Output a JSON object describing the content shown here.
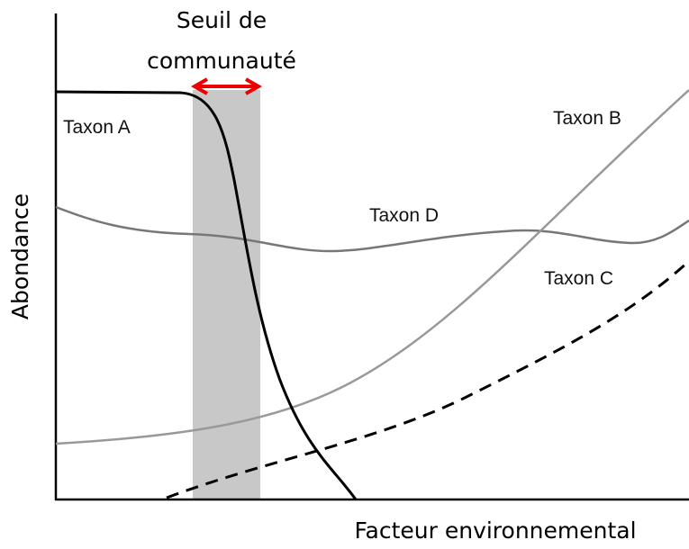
{
  "threshold": {
    "lines": [
      "Seuil de",
      "communauté"
    ]
  },
  "axes": {
    "y_label": "Abondance",
    "x_label": "Facteur environnemental"
  },
  "curves": [
    {
      "label": "Taxon A"
    },
    {
      "label": "Taxon B"
    },
    {
      "label": "Taxon D"
    },
    {
      "label": "Taxon C"
    }
  ]
}
